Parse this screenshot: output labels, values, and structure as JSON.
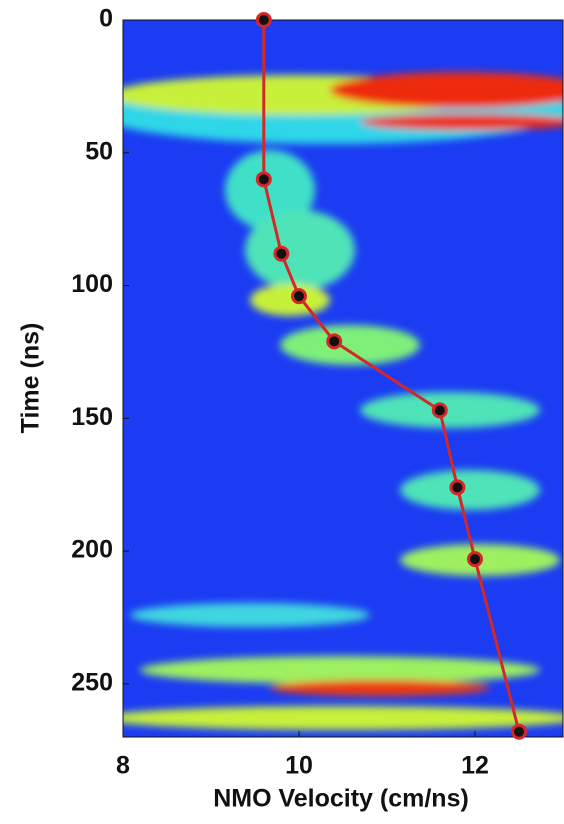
{
  "chart_data": {
    "type": "line",
    "x_label": "NMO Velocity (cm/ns)",
    "y_label": "Time (ns)",
    "series": [
      {
        "color": "#d42828",
        "x": [
          9.6,
          9.6,
          9.8,
          10,
          10.4,
          11.6,
          11.8,
          12,
          12.5
        ],
        "values": [
          0,
          60,
          88,
          104,
          121,
          147,
          176,
          203,
          268
        ]
      }
    ],
    "xlim": [
      8,
      13
    ],
    "xticks": [
      8,
      10,
      12
    ],
    "ylim": [
      0,
      270
    ],
    "yticks": [
      0,
      50,
      100,
      150,
      200,
      250
    ],
    "y_inverted": true,
    "grid": false
  }
}
